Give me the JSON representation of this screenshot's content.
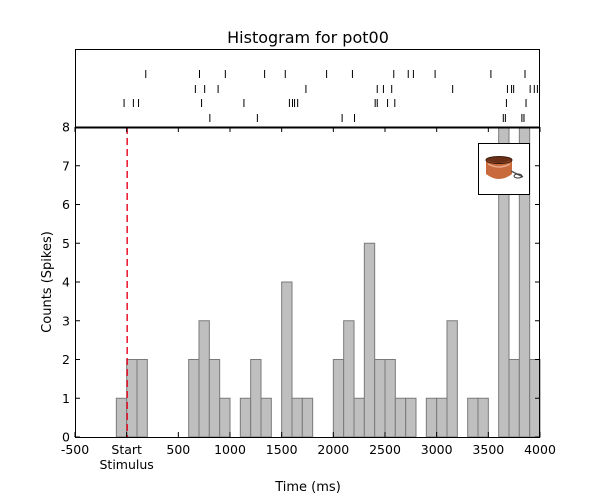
{
  "chart_data": {
    "type": "bar",
    "title": "Histogram for pot00",
    "xlabel": "Time (ms)",
    "ylabel": "Counts (Spikes)",
    "xlim": [
      -500,
      4000
    ],
    "ylim": [
      0,
      8
    ],
    "bin_width": 100,
    "bins": [
      {
        "start": -100,
        "value": 1
      },
      {
        "start": 0,
        "value": 2
      },
      {
        "start": 100,
        "value": 2
      },
      {
        "start": 600,
        "value": 2
      },
      {
        "start": 700,
        "value": 3
      },
      {
        "start": 800,
        "value": 2
      },
      {
        "start": 900,
        "value": 1
      },
      {
        "start": 1100,
        "value": 1
      },
      {
        "start": 1200,
        "value": 2
      },
      {
        "start": 1300,
        "value": 1
      },
      {
        "start": 1500,
        "value": 4
      },
      {
        "start": 1600,
        "value": 1
      },
      {
        "start": 1700,
        "value": 1
      },
      {
        "start": 2000,
        "value": 2
      },
      {
        "start": 2100,
        "value": 3
      },
      {
        "start": 2200,
        "value": 1
      },
      {
        "start": 2300,
        "value": 5
      },
      {
        "start": 2400,
        "value": 2
      },
      {
        "start": 2500,
        "value": 2
      },
      {
        "start": 2600,
        "value": 1
      },
      {
        "start": 2700,
        "value": 1
      },
      {
        "start": 2900,
        "value": 1
      },
      {
        "start": 3000,
        "value": 1
      },
      {
        "start": 3100,
        "value": 3
      },
      {
        "start": 3300,
        "value": 1
      },
      {
        "start": 3400,
        "value": 1
      },
      {
        "start": 3600,
        "value": 8
      },
      {
        "start": 3700,
        "value": 2
      },
      {
        "start": 3800,
        "value": 8
      },
      {
        "start": 3900,
        "value": 2
      }
    ],
    "x_ticks": [
      -500,
      0,
      500,
      1000,
      1500,
      2000,
      2500,
      3000,
      3500,
      4000
    ],
    "x_tick_labels": [
      "-500",
      "Start",
      "500",
      "1000",
      "1500",
      "2000",
      "2500",
      "3000",
      "3500",
      "4000"
    ],
    "y_ticks": [
      0,
      1,
      2,
      3,
      4,
      5,
      6,
      7,
      8
    ],
    "stimulus_line_x": 0,
    "stimulus_label": "Stimulus",
    "raster_trials": [
      [
        180,
        700,
        950,
        1330,
        1530,
        1930,
        2180,
        2580,
        2720,
        2770,
        2980,
        3520,
        3850
      ],
      [
        660,
        750,
        880,
        1730,
        2420,
        2480,
        2560,
        3150,
        3680,
        3720,
        3740,
        3900,
        3940,
        3970
      ],
      [
        -30,
        60,
        110,
        720,
        1130,
        1570,
        1600,
        1620,
        1650,
        2400,
        2420,
        2520,
        2590,
        3670,
        3860
      ],
      [
        800,
        1260,
        2080,
        2200,
        3640,
        3660,
        3820,
        3840
      ]
    ],
    "colors": {
      "bar_fill": "#bfbfbf",
      "bar_edge": "#7a7a7a",
      "stimulus_line": "#e8001c",
      "axis": "#000000"
    },
    "inset_image": "copper-pot"
  }
}
